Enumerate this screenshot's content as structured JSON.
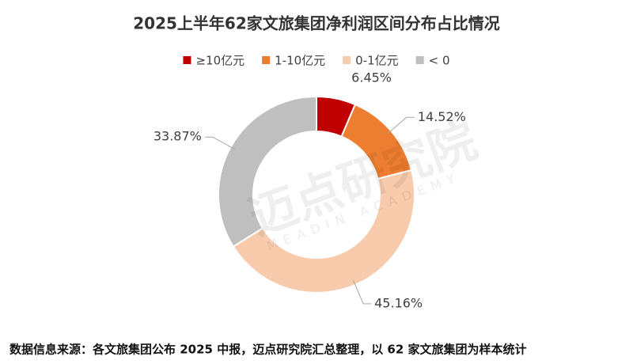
{
  "chart_data": {
    "type": "donut",
    "title": "2025上半年62家文旅集团净利润区间分布占比情况",
    "categories": [
      "≥10亿元",
      "1-10亿元",
      "0-1亿元",
      "< 0"
    ],
    "values": [
      6.45,
      14.52,
      45.16,
      33.87
    ],
    "value_labels": [
      "6.45%",
      "14.52%",
      "45.16%",
      "33.87%"
    ],
    "colors": [
      "#c00000",
      "#ed7d31",
      "#f8cbad",
      "#bfbfbf"
    ],
    "legend": "top",
    "watermark": "迈点研究院",
    "watermark_sub": "MEADIN ACADEMY",
    "source": "数据信息来源：各文旅集团公布 2025 中报，迈点研究院汇总整理，以 62 家文旅集团为样本统计"
  }
}
